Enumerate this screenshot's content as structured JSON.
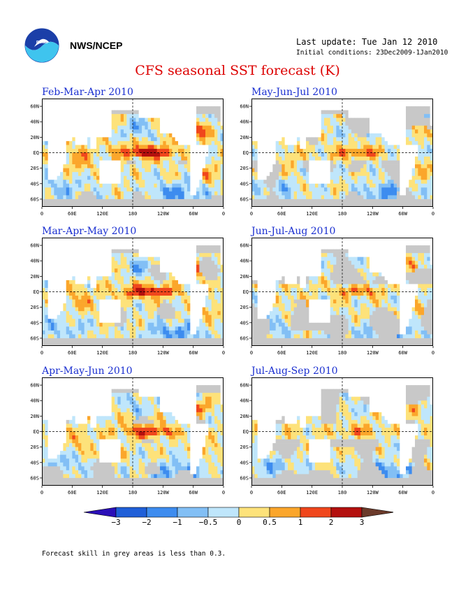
{
  "header": {
    "org": "NWS/NCEP",
    "last_update": "Last update: Tue Jan 12 2010",
    "initial_conditions": "Initial conditions: 23Dec2009-1Jan2010",
    "logo_icon": "noaa-logo-icon"
  },
  "title": "CFS seasonal SST forecast (K)",
  "axes": {
    "lon_ticks": [
      "0",
      "60E",
      "120E",
      "180",
      "120W",
      "60W",
      "0"
    ],
    "lat_ticks": [
      "60N",
      "40N",
      "20N",
      "EQ",
      "20S",
      "40S",
      "60S"
    ]
  },
  "chart_data": {
    "type": "heatmap",
    "title": "CFS seasonal SST forecast (K)",
    "units": "K",
    "xlabel": "",
    "ylabel": "",
    "xlim": [
      0,
      360
    ],
    "ylim": [
      -70,
      70
    ],
    "grid": "dashed lines at equator and 180",
    "panels": [
      {
        "label": "Feb-Mar-Apr 2010",
        "strength": 1.0
      },
      {
        "label": "May-Jun-Jul 2010",
        "strength": 0.45
      },
      {
        "label": "Mar-Apr-May 2010",
        "strength": 0.85
      },
      {
        "label": "Jun-Jul-Aug 2010",
        "strength": 0.38
      },
      {
        "label": "Apr-May-Jun 2010",
        "strength": 0.7
      },
      {
        "label": "Jul-Aug-Sep 2010",
        "strength": 0.3
      }
    ],
    "colorbar": {
      "ticks": [
        "-3",
        "-2",
        "-1",
        "-0.5",
        "0",
        "0.5",
        "1",
        "2",
        "3"
      ],
      "colors": [
        "#2b0fb8",
        "#1f5fd8",
        "#3d8cef",
        "#82bff5",
        "#bfe6fb",
        "#fde27a",
        "#fba62b",
        "#f0461c",
        "#b4100e",
        "#6b3a2a"
      ]
    },
    "low_skill_color": "#c8c8c8"
  },
  "footnote": "Forecast skill in grey areas is less than 0.3."
}
